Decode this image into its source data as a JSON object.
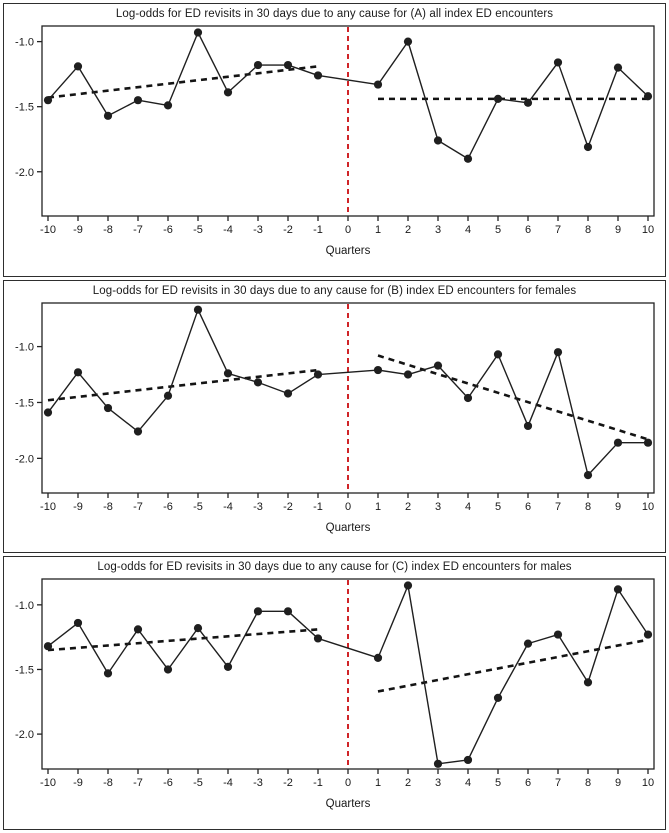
{
  "colors": {
    "series": "#1f1f1f",
    "marker": "#1f1f1f",
    "trend": "#141414",
    "intervention": "#d02428",
    "axis": "#222222",
    "frame": "#2e2e2e"
  },
  "chart_data": [
    {
      "type": "line",
      "title": "Log-odds for ED revisits in 30 days due to any cause for (A) all index ED encounters",
      "xlabel": "Quarters",
      "ylabel": "",
      "x_ticks": [
        -10,
        -9,
        -8,
        -7,
        -6,
        -5,
        -4,
        -3,
        -2,
        -1,
        0,
        1,
        2,
        3,
        4,
        5,
        6,
        7,
        8,
        9,
        10
      ],
      "y_ticks": [
        -1.0,
        -1.5,
        -2.0
      ],
      "ylim": [
        -2.34,
        -0.88
      ],
      "xlim": [
        -10.2,
        10.2
      ],
      "intervention_x": 0,
      "grid": false,
      "legend": "none",
      "series": [
        {
          "name": "observed-log-odds",
          "x": [
            -10,
            -9,
            -8,
            -7,
            -6,
            -5,
            -4,
            -3,
            -2,
            -1,
            1,
            2,
            3,
            4,
            5,
            6,
            7,
            8,
            9,
            10
          ],
          "y": [
            -1.45,
            -1.19,
            -1.57,
            -1.45,
            -1.49,
            -0.93,
            -1.39,
            -1.18,
            -1.18,
            -1.26,
            -1.33,
            -1.0,
            -1.76,
            -1.9,
            -1.44,
            -1.47,
            -1.16,
            -1.81,
            -1.2,
            -1.42
          ]
        }
      ],
      "trends": [
        {
          "name": "pre-intervention-trend",
          "x": [
            -10,
            -1
          ],
          "y": [
            -1.43,
            -1.19
          ]
        },
        {
          "name": "post-intervention-trend",
          "x": [
            1,
            10
          ],
          "y": [
            -1.44,
            -1.44
          ]
        }
      ]
    },
    {
      "type": "line",
      "title": "Log-odds for ED revisits in 30 days due to any cause for (B) index ED encounters for females",
      "xlabel": "Quarters",
      "ylabel": "",
      "x_ticks": [
        -10,
        -9,
        -8,
        -7,
        -6,
        -5,
        -4,
        -3,
        -2,
        -1,
        0,
        1,
        2,
        3,
        4,
        5,
        6,
        7,
        8,
        9,
        10
      ],
      "y_ticks": [
        -1.0,
        -1.5,
        -2.0
      ],
      "ylim": [
        -2.31,
        -0.61
      ],
      "xlim": [
        -10.2,
        10.2
      ],
      "intervention_x": 0,
      "grid": false,
      "legend": "none",
      "series": [
        {
          "name": "observed-log-odds",
          "x": [
            -10,
            -9,
            -8,
            -7,
            -6,
            -5,
            -4,
            -3,
            -2,
            -1,
            1,
            2,
            3,
            4,
            5,
            6,
            7,
            8,
            9,
            10
          ],
          "y": [
            -1.59,
            -1.23,
            -1.55,
            -1.76,
            -1.44,
            -0.67,
            -1.24,
            -1.32,
            -1.42,
            -1.25,
            -1.21,
            -1.25,
            -1.17,
            -1.46,
            -1.07,
            -1.71,
            -1.05,
            -2.15,
            -1.86,
            -1.86
          ]
        }
      ],
      "trends": [
        {
          "name": "pre-intervention-trend",
          "x": [
            -10,
            -1
          ],
          "y": [
            -1.48,
            -1.21
          ]
        },
        {
          "name": "post-intervention-trend",
          "x": [
            1,
            10
          ],
          "y": [
            -1.08,
            -1.83
          ]
        }
      ]
    },
    {
      "type": "line",
      "title": "Log-odds for ED revisits in 30 days due to any cause for (C) index ED encounters for males",
      "xlabel": "Quarters",
      "ylabel": "",
      "x_ticks": [
        -10,
        -9,
        -8,
        -7,
        -6,
        -5,
        -4,
        -3,
        -2,
        -1,
        0,
        1,
        2,
        3,
        4,
        5,
        6,
        7,
        8,
        9,
        10
      ],
      "y_ticks": [
        -1.0,
        -1.5,
        -2.0
      ],
      "ylim": [
        -2.27,
        -0.8
      ],
      "xlim": [
        -10.2,
        10.2
      ],
      "intervention_x": 0,
      "grid": false,
      "legend": "none",
      "series": [
        {
          "name": "observed-log-odds",
          "x": [
            -10,
            -9,
            -8,
            -7,
            -6,
            -5,
            -4,
            -3,
            -2,
            -1,
            1,
            2,
            3,
            4,
            5,
            6,
            7,
            8,
            9,
            10
          ],
          "y": [
            -1.32,
            -1.14,
            -1.53,
            -1.19,
            -1.5,
            -1.18,
            -1.48,
            -1.05,
            -1.05,
            -1.26,
            -1.41,
            -0.85,
            -2.23,
            -2.2,
            -1.72,
            -1.3,
            -1.23,
            -1.6,
            -0.88,
            -1.23
          ]
        }
      ],
      "trends": [
        {
          "name": "pre-intervention-trend",
          "x": [
            -10,
            -1
          ],
          "y": [
            -1.35,
            -1.19
          ]
        },
        {
          "name": "post-intervention-trend",
          "x": [
            1,
            10
          ],
          "y": [
            -1.67,
            -1.27
          ]
        }
      ]
    }
  ]
}
